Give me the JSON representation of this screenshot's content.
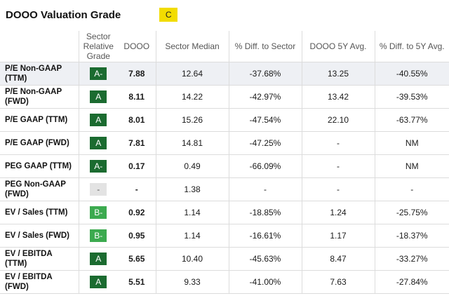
{
  "title": "DOOO Valuation Grade",
  "overall_grade": "C",
  "headers": [
    "Sector Relative Grade",
    "DOOO",
    "Sector Median",
    "% Diff. to Sector",
    "DOOO 5Y Avg.",
    "% Diff. to 5Y Avg."
  ],
  "rows": [
    {
      "metric": "P/E Non-GAAP (TTM)",
      "grade": "A-",
      "grade_style": "dark",
      "value": "7.88",
      "sector_median": "12.64",
      "diff_sector": "-37.68%",
      "avg_5y": "13.25",
      "diff_5y": "-40.55%"
    },
    {
      "metric": "P/E Non-GAAP (FWD)",
      "grade": "A",
      "grade_style": "dark",
      "value": "8.11",
      "sector_median": "14.22",
      "diff_sector": "-42.97%",
      "avg_5y": "13.42",
      "diff_5y": "-39.53%"
    },
    {
      "metric": "P/E GAAP (TTM)",
      "grade": "A",
      "grade_style": "dark",
      "value": "8.01",
      "sector_median": "15.26",
      "diff_sector": "-47.54%",
      "avg_5y": "22.10",
      "diff_5y": "-63.77%"
    },
    {
      "metric": "P/E GAAP (FWD)",
      "grade": "A",
      "grade_style": "dark",
      "value": "7.81",
      "sector_median": "14.81",
      "diff_sector": "-47.25%",
      "avg_5y": "-",
      "diff_5y": "NM"
    },
    {
      "metric": "PEG GAAP (TTM)",
      "grade": "A-",
      "grade_style": "dark",
      "value": "0.17",
      "sector_median": "0.49",
      "diff_sector": "-66.09%",
      "avg_5y": "-",
      "diff_5y": "NM"
    },
    {
      "metric": "PEG Non-GAAP (FWD)",
      "grade": "-",
      "grade_style": "none",
      "value": "-",
      "sector_median": "1.38",
      "diff_sector": "-",
      "avg_5y": "-",
      "diff_5y": "-"
    },
    {
      "metric": "EV / Sales (TTM)",
      "grade": "B-",
      "grade_style": "light",
      "value": "0.92",
      "sector_median": "1.14",
      "diff_sector": "-18.85%",
      "avg_5y": "1.24",
      "diff_5y": "-25.75%"
    },
    {
      "metric": "EV / Sales (FWD)",
      "grade": "B-",
      "grade_style": "light",
      "value": "0.95",
      "sector_median": "1.14",
      "diff_sector": "-16.61%",
      "avg_5y": "1.17",
      "diff_5y": "-18.37%"
    },
    {
      "metric": "EV / EBITDA (TTM)",
      "grade": "A",
      "grade_style": "dark",
      "value": "5.65",
      "sector_median": "10.40",
      "diff_sector": "-45.63%",
      "avg_5y": "8.47",
      "diff_5y": "-33.27%"
    },
    {
      "metric": "EV / EBITDA (FWD)",
      "grade": "A",
      "grade_style": "dark",
      "value": "5.51",
      "sector_median": "9.33",
      "diff_sector": "-41.00%",
      "avg_5y": "7.63",
      "diff_5y": "-27.84%"
    }
  ]
}
